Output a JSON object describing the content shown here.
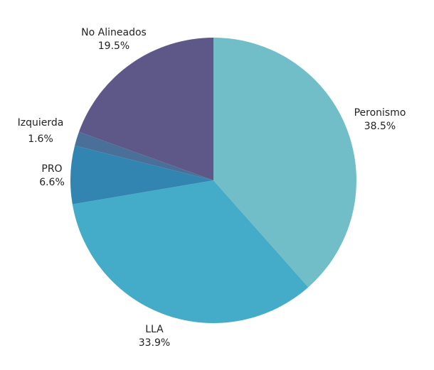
{
  "chart_data": {
    "type": "pie",
    "title": "",
    "start": "top",
    "direction": "clockwise",
    "slices": [
      {
        "label": "Peronismo",
        "value": 38.5,
        "value_label": "38.5%",
        "color": "#72BEC8"
      },
      {
        "label": "LLA",
        "value": 33.9,
        "value_label": "33.9%",
        "color": "#44ACC9"
      },
      {
        "label": "PRO",
        "value": 6.6,
        "value_label": "6.6%",
        "color": "#3385B1"
      },
      {
        "label": "Izquierda",
        "value": 1.6,
        "value_label": "1.6%",
        "color": "#4A6F98"
      },
      {
        "label": "No Alineados",
        "value": 19.5,
        "value_label": "19.5%",
        "color": "#5E5889"
      }
    ]
  }
}
